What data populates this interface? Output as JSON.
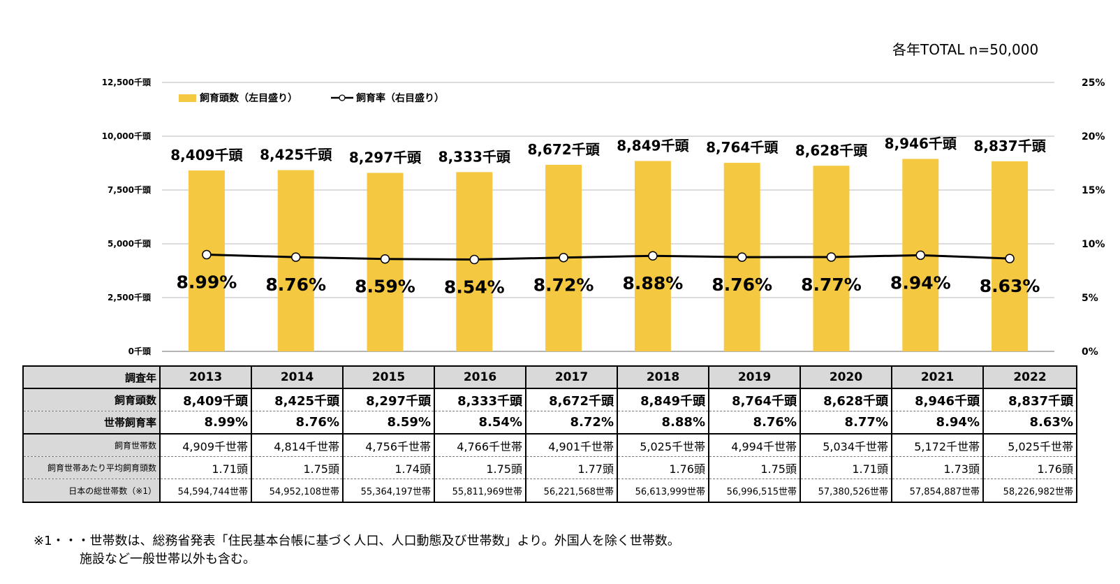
{
  "header": {
    "total_note": "各年TOTAL n=50,000"
  },
  "chart_data": {
    "type": "bar",
    "categories": [
      "2013",
      "2014",
      "2015",
      "2016",
      "2017",
      "2018",
      "2019",
      "2020",
      "2021",
      "2022"
    ],
    "series": [
      {
        "name": "飼育頭数（左目盛り）",
        "type": "bar",
        "axis": "left",
        "values": [
          8409,
          8425,
          8297,
          8333,
          8672,
          8849,
          8764,
          8628,
          8946,
          8837
        ],
        "labels": [
          "8,409千頭",
          "8,425千頭",
          "8,297千頭",
          "8,333千頭",
          "8,672千頭",
          "8,849千頭",
          "8,764千頭",
          "8,628千頭",
          "8,946千頭",
          "8,837千頭"
        ],
        "color": "#f5c842"
      },
      {
        "name": "飼育率（右目盛り）",
        "type": "line",
        "axis": "right",
        "values": [
          8.99,
          8.76,
          8.59,
          8.54,
          8.72,
          8.88,
          8.76,
          8.77,
          8.94,
          8.63
        ],
        "labels": [
          "8.99%",
          "8.76%",
          "8.59%",
          "8.54%",
          "8.72%",
          "8.88%",
          "8.76%",
          "8.77%",
          "8.94%",
          "8.63%"
        ],
        "color": "#000000"
      }
    ],
    "y_left": {
      "min": 0,
      "max": 12500,
      "ticks": [
        0,
        2500,
        5000,
        7500,
        10000,
        12500
      ],
      "tick_labels": [
        "0千頭",
        "2,500千頭",
        "5,000千頭",
        "7,500千頭",
        "10,000千頭",
        "12,500千頭"
      ]
    },
    "y_right": {
      "min": 0,
      "max": 25,
      "ticks": [
        0,
        5,
        10,
        15,
        20,
        25
      ],
      "tick_labels": [
        "0%",
        "5%",
        "10%",
        "15%",
        "20%",
        "25%"
      ]
    },
    "grid": true,
    "legend": "top-left"
  },
  "table": {
    "header_label": "調査年",
    "years": [
      "2013",
      "2014",
      "2015",
      "2016",
      "2017",
      "2018",
      "2019",
      "2020",
      "2021",
      "2022"
    ],
    "rows": [
      {
        "label": "飼育頭数",
        "values": [
          "8,409千頭",
          "8,425千頭",
          "8,297千頭",
          "8,333千頭",
          "8,672千頭",
          "8,849千頭",
          "8,764千頭",
          "8,628千頭",
          "8,946千頭",
          "8,837千頭"
        ]
      },
      {
        "label": "世帯飼育率",
        "values": [
          "8.99%",
          "8.76%",
          "8.59%",
          "8.54%",
          "8.72%",
          "8.88%",
          "8.76%",
          "8.77%",
          "8.94%",
          "8.63%"
        ]
      },
      {
        "label": "飼育世帯数",
        "values": [
          "4,909千世帯",
          "4,814千世帯",
          "4,756千世帯",
          "4,766千世帯",
          "4,901千世帯",
          "5,025千世帯",
          "4,994千世帯",
          "5,034千世帯",
          "5,172千世帯",
          "5,025千世帯"
        ]
      },
      {
        "label": "飼育世帯あたり平均飼育頭数",
        "values": [
          "1.71頭",
          "1.75頭",
          "1.74頭",
          "1.75頭",
          "1.77頭",
          "1.76頭",
          "1.75頭",
          "1.71頭",
          "1.73頭",
          "1.76頭"
        ]
      },
      {
        "label": "日本の総世帯数（※1）",
        "values": [
          "54,594,744世帯",
          "54,952,108世帯",
          "55,364,197世帯",
          "55,811,969世帯",
          "56,221,568世帯",
          "56,613,999世帯",
          "56,996,515世帯",
          "57,380,526世帯",
          "57,854,887世帯",
          "58,226,982世帯"
        ]
      }
    ]
  },
  "footnote": {
    "line1": "※1・・・世帯数は、総務省発表「住民基本台帳に基づく人口、人口動態及び世帯数」より。外国人を除く世帯数。",
    "line2": "施設など一般世帯以外も含む。"
  }
}
